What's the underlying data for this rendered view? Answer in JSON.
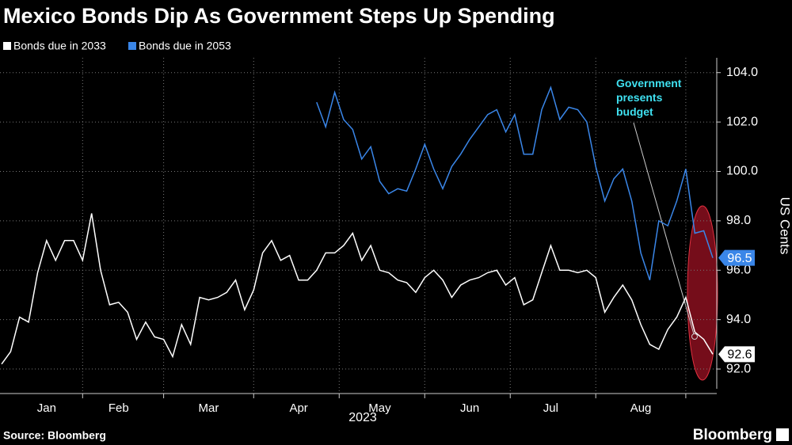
{
  "chart_data": {
    "type": "line",
    "title": "Mexico Bonds Dip As Government Steps Up Spending",
    "ylabel": "US Cents",
    "xlabel": "2023",
    "source": "Source: Bloomberg",
    "brand": "Bloomberg",
    "annotation": "Government presents budget",
    "categories": [
      null,
      null,
      null,
      null,
      null,
      "Jan",
      null,
      null,
      null,
      null,
      null,
      null,
      null,
      "Feb",
      null,
      null,
      null,
      null,
      null,
      null,
      null,
      null,
      null,
      "Mar",
      null,
      null,
      null,
      null,
      null,
      null,
      null,
      null,
      null,
      "Apr",
      null,
      null,
      null,
      null,
      null,
      null,
      null,
      null,
      "May",
      null,
      null,
      null,
      null,
      null,
      null,
      null,
      null,
      null,
      "Jun",
      null,
      null,
      null,
      null,
      null,
      null,
      null,
      null,
      "Jul",
      null,
      null,
      null,
      null,
      null,
      null,
      null,
      null,
      null,
      "Aug",
      null,
      null,
      null,
      null,
      null,
      null,
      null,
      null
    ],
    "series": [
      {
        "name": "Bonds due in 2033",
        "color": "#ffffff",
        "values": [
          92.2,
          92.7,
          94.1,
          93.9,
          95.9,
          97.2,
          96.4,
          97.2,
          97.2,
          96.4,
          98.3,
          96.0,
          94.6,
          94.7,
          94.3,
          93.2,
          93.9,
          93.3,
          93.2,
          92.5,
          93.8,
          93.0,
          94.9,
          94.8,
          94.9,
          95.1,
          95.6,
          94.4,
          95.2,
          96.7,
          97.2,
          96.4,
          96.6,
          95.6,
          95.6,
          96.0,
          96.7,
          96.7,
          97.0,
          97.5,
          96.4,
          97.0,
          96.0,
          95.9,
          95.6,
          95.5,
          95.1,
          95.7,
          96.0,
          95.6,
          94.9,
          95.4,
          95.6,
          95.7,
          95.9,
          96.0,
          95.4,
          95.7,
          94.6,
          94.8,
          95.9,
          97.0,
          96.0,
          96.0,
          95.9,
          96.0,
          95.7,
          94.3,
          94.9,
          95.4,
          94.8,
          93.8,
          93.0,
          92.8,
          93.6,
          94.1,
          94.9,
          93.5,
          93.2,
          92.6
        ]
      },
      {
        "name": "Bonds due in 2053",
        "color": "#3a86e8",
        "values": [
          null,
          null,
          null,
          null,
          null,
          null,
          null,
          null,
          null,
          null,
          null,
          null,
          null,
          null,
          null,
          null,
          null,
          null,
          null,
          null,
          null,
          null,
          null,
          null,
          null,
          null,
          null,
          null,
          null,
          null,
          null,
          null,
          null,
          null,
          null,
          102.8,
          101.8,
          103.2,
          102.1,
          101.7,
          100.5,
          101.0,
          99.6,
          99.1,
          99.3,
          99.2,
          100.1,
          101.1,
          100.1,
          99.3,
          100.2,
          100.7,
          101.3,
          101.8,
          102.3,
          102.5,
          101.6,
          102.3,
          100.7,
          100.7,
          102.5,
          103.4,
          102.1,
          102.6,
          102.5,
          102.0,
          100.2,
          98.8,
          99.7,
          100.1,
          98.8,
          96.7,
          95.6,
          98.0,
          97.8,
          98.8,
          100.1,
          97.5,
          97.6,
          96.5
        ]
      }
    ],
    "ylim": [
      91.2,
      104.6
    ],
    "yticks": [
      {
        "value": 92,
        "label": "92.0"
      },
      {
        "value": 94,
        "label": "94.0"
      },
      {
        "value": 96,
        "label": "96.0"
      },
      {
        "value": 98,
        "label": "98.0"
      },
      {
        "value": 100,
        "label": "100.0"
      },
      {
        "value": 102,
        "label": "102.0"
      },
      {
        "value": 104,
        "label": "104.0"
      }
    ],
    "grid": true
  }
}
